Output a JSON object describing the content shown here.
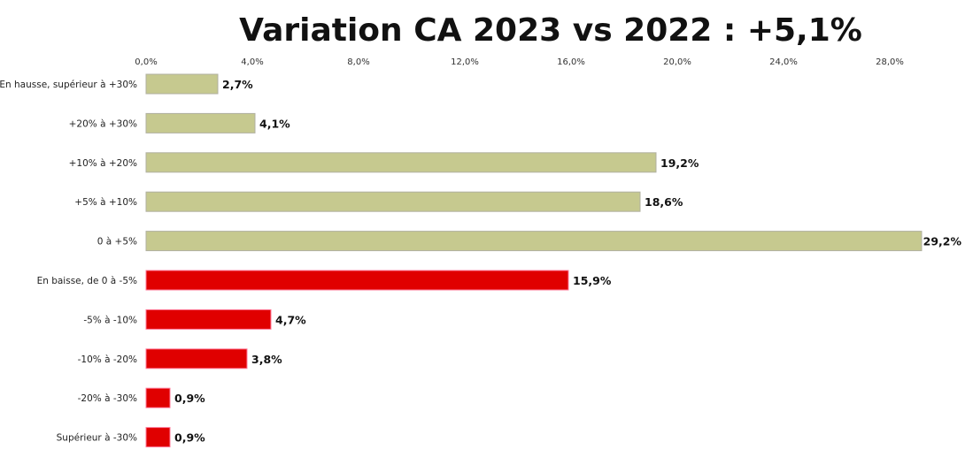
{
  "chart_data": {
    "type": "bar",
    "orientation": "horizontal",
    "title": "Variation CA 2023 vs 2022 : +5,1%",
    "xlabel": "",
    "ylabel": "",
    "xlim": [
      0,
      29.2
    ],
    "x_ticks": [
      "0,0%",
      "4,0%",
      "8,0%",
      "12,0%",
      "16,0%",
      "20,0%",
      "24,0%",
      "28,0%"
    ],
    "x_tick_values": [
      0,
      4,
      8,
      12,
      16,
      20,
      24,
      28
    ],
    "grid": false,
    "legend": "none",
    "categories": [
      "En hausse, supérieur à +30%",
      "+20% à +30%",
      "+10% à +20%",
      "+5% à +10%",
      "0 à +5%",
      "En baisse, de 0 à -5%",
      "-5% à -10%",
      "-10% à -20%",
      "-20% à -30%",
      "Supérieur à -30%"
    ],
    "values": [
      2.7,
      4.1,
      19.2,
      18.6,
      29.2,
      15.9,
      4.7,
      3.8,
      0.9,
      0.9
    ],
    "data_labels": [
      "2,7%",
      "4,1%",
      "19,2%",
      "18,6%",
      "29,2%",
      "15,9%",
      "4,7%",
      "3,8%",
      "0,9%",
      "0,9%"
    ],
    "colors": [
      "#c6c98f",
      "#c6c98f",
      "#c6c98f",
      "#c6c98f",
      "#c6c98f",
      "#e00000",
      "#e00000",
      "#e00000",
      "#e00000",
      "#e00000"
    ]
  }
}
